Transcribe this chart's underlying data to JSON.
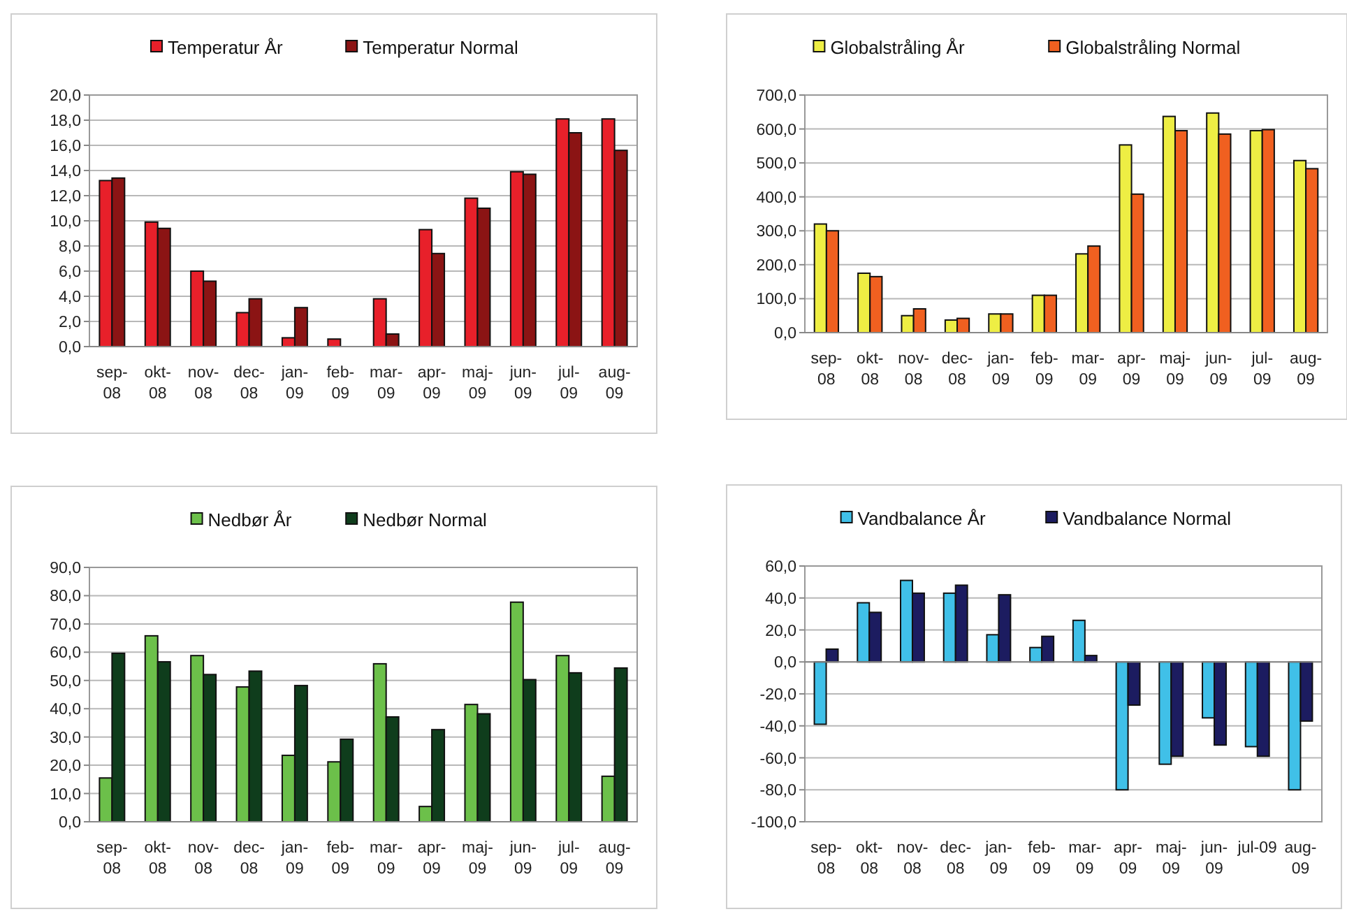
{
  "chart_data": [
    {
      "type": "bar",
      "categories": [
        "sep-\n08",
        "okt-\n08",
        "nov-\n08",
        "dec-\n08",
        "jan-\n09",
        "feb-\n09",
        "mar-\n09",
        "apr-\n09",
        "maj-\n09",
        "jun-\n09",
        "jul-\n09",
        "aug-\n09"
      ],
      "series": [
        {
          "name": "Temperatur År",
          "color": "#e8202a",
          "values": [
            13.2,
            9.9,
            6.0,
            2.7,
            0.7,
            0.6,
            3.8,
            9.3,
            11.8,
            13.9,
            18.1,
            18.1
          ]
        },
        {
          "name": "Temperatur Normal",
          "color": "#8b1414",
          "values": [
            13.4,
            9.4,
            5.2,
            3.8,
            3.1,
            null,
            1.0,
            7.4,
            11.0,
            13.7,
            17.0,
            15.6
          ]
        }
      ],
      "ylim": [
        0,
        20
      ],
      "yticks": [
        {
          "value": 0,
          "label": "0,0"
        },
        {
          "value": 2,
          "label": "2,0"
        },
        {
          "value": 4,
          "label": "4,0"
        },
        {
          "value": 6,
          "label": "6,0"
        },
        {
          "value": 8,
          "label": "8,0"
        },
        {
          "value": 10,
          "label": "10,0"
        },
        {
          "value": 12,
          "label": "12,0"
        },
        {
          "value": 14,
          "label": "14,0"
        },
        {
          "value": 16,
          "label": "16,0"
        },
        {
          "value": 18,
          "label": "18,0"
        },
        {
          "value": 20,
          "label": "20,0"
        }
      ],
      "grid": "y",
      "legend": "top"
    },
    {
      "type": "bar",
      "categories": [
        "sep-\n08",
        "okt-\n08",
        "nov-\n08",
        "dec-\n08",
        "jan-\n09",
        "feb-\n09",
        "mar-\n09",
        "apr-\n09",
        "maj-\n09",
        "jun-\n09",
        "jul-\n09",
        "aug-\n09"
      ],
      "series": [
        {
          "name": "Globalstråling År",
          "color": "#eeee44",
          "values": [
            320,
            175,
            50,
            37,
            55,
            110,
            232,
            553,
            637,
            647,
            595,
            507
          ]
        },
        {
          "name": "Globalstråling Normal",
          "color": "#f06020",
          "values": [
            300,
            165,
            70,
            42,
            55,
            110,
            255,
            408,
            595,
            585,
            598,
            483
          ]
        }
      ],
      "ylim": [
        0,
        700
      ],
      "yticks": [
        {
          "value": 0,
          "label": "0,0"
        },
        {
          "value": 100,
          "label": "100,0"
        },
        {
          "value": 200,
          "label": "200,0"
        },
        {
          "value": 300,
          "label": "300,0"
        },
        {
          "value": 400,
          "label": "400,0"
        },
        {
          "value": 500,
          "label": "500,0"
        },
        {
          "value": 600,
          "label": "600,0"
        },
        {
          "value": 700,
          "label": "700,0"
        }
      ],
      "grid": "y",
      "legend": "top"
    },
    {
      "type": "bar",
      "categories": [
        "sep-\n08",
        "okt-\n08",
        "nov-\n08",
        "dec-\n08",
        "jan-\n09",
        "feb-\n09",
        "mar-\n09",
        "apr-\n09",
        "maj-\n09",
        "jun-\n09",
        "jul-\n09",
        "aug-\n09"
      ],
      "series": [
        {
          "name": "Nedbør År",
          "color": "#6cc04a",
          "values": [
            15.5,
            65.8,
            58.8,
            47.7,
            23.5,
            21.2,
            55.9,
            5.4,
            41.5,
            77.7,
            58.8,
            16.1
          ]
        },
        {
          "name": "Nedbør Normal",
          "color": "#0f3d1c",
          "values": [
            59.6,
            56.6,
            52.1,
            53.3,
            48.2,
            29.2,
            37.1,
            32.6,
            38.2,
            50.3,
            52.7,
            54.4
          ]
        }
      ],
      "ylim": [
        0,
        90
      ],
      "yticks": [
        {
          "value": 0,
          "label": "0,0"
        },
        {
          "value": 10,
          "label": "10,0"
        },
        {
          "value": 20,
          "label": "20,0"
        },
        {
          "value": 30,
          "label": "30,0"
        },
        {
          "value": 40,
          "label": "40,0"
        },
        {
          "value": 50,
          "label": "50,0"
        },
        {
          "value": 60,
          "label": "60,0"
        },
        {
          "value": 70,
          "label": "70,0"
        },
        {
          "value": 80,
          "label": "80,0"
        },
        {
          "value": 90,
          "label": "90,0"
        }
      ],
      "grid": "y",
      "legend": "top"
    },
    {
      "type": "bar",
      "categories": [
        "sep-\n08",
        "okt-\n08",
        "nov-\n08",
        "dec-\n08",
        "jan-\n09",
        "feb-\n09",
        "mar-\n09",
        "apr-\n09",
        "maj-\n09",
        "jun-\n09",
        "jul-09",
        "aug-\n09"
      ],
      "series": [
        {
          "name": "Vandbalance År",
          "color": "#40c0e8",
          "values": [
            -39,
            37,
            51,
            43,
            17,
            9,
            26,
            -80,
            -64,
            -35,
            -53,
            -80
          ]
        },
        {
          "name": "Vandbalance Normal",
          "color": "#1c1c60",
          "values": [
            8,
            31,
            43,
            48,
            42,
            16,
            4,
            -27,
            -59,
            -52,
            -59,
            -37
          ]
        }
      ],
      "ylim": [
        -100,
        60
      ],
      "yticks": [
        {
          "value": -100,
          "label": "-100,0"
        },
        {
          "value": -80,
          "label": "-80,0"
        },
        {
          "value": -60,
          "label": "-60,0"
        },
        {
          "value": -40,
          "label": "-40,0"
        },
        {
          "value": -20,
          "label": "-20,0"
        },
        {
          "value": 0,
          "label": "0,0"
        },
        {
          "value": 20,
          "label": "20,0"
        },
        {
          "value": 40,
          "label": "40,0"
        },
        {
          "value": 60,
          "label": "60,0"
        }
      ],
      "grid": "y",
      "legend": "top"
    }
  ]
}
